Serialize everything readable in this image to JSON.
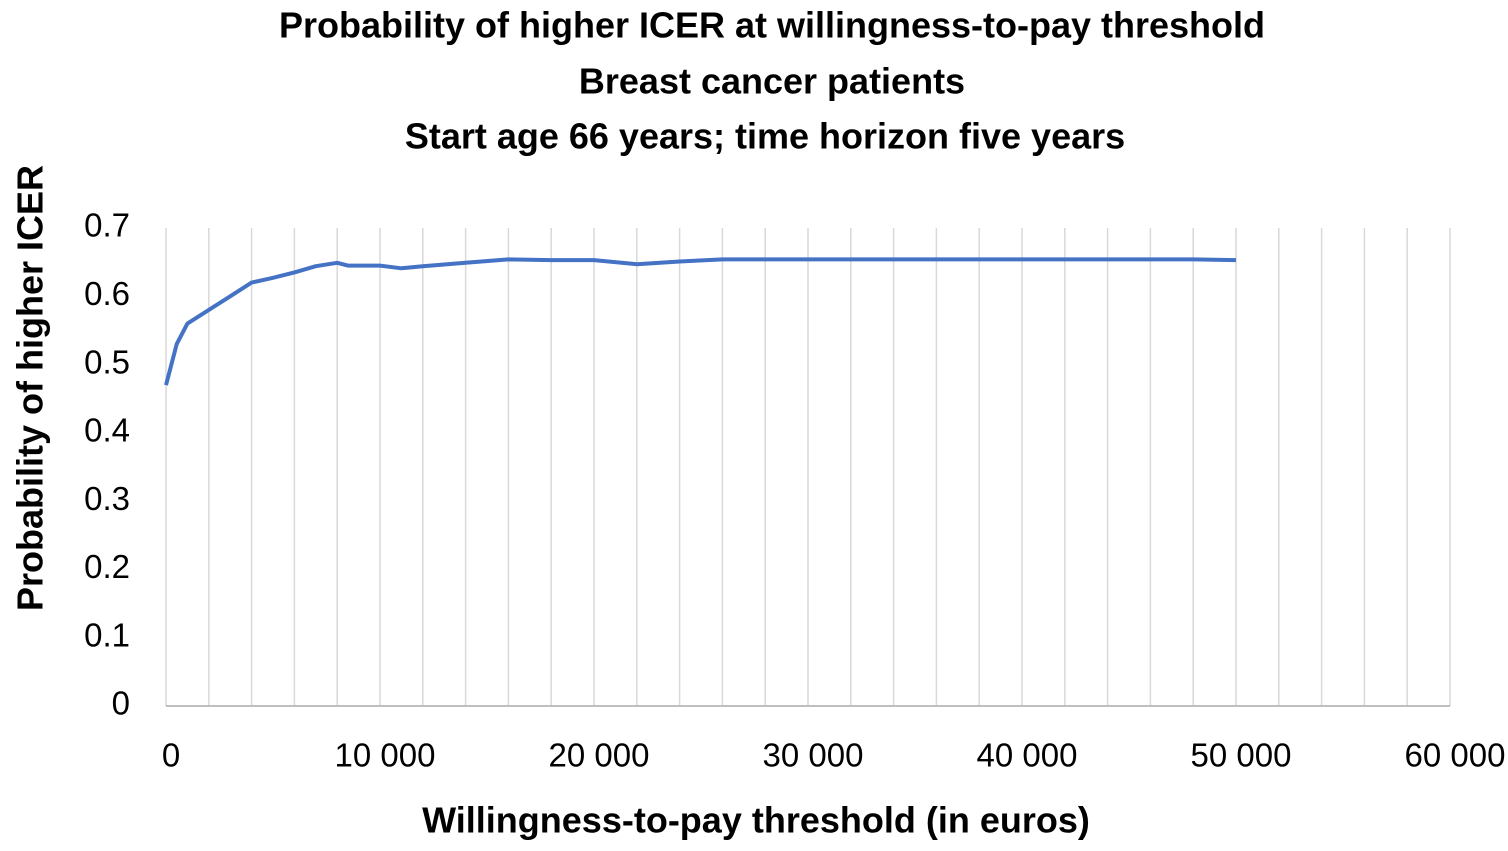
{
  "chart_data": {
    "type": "line",
    "title": "Probability of higher ICER at willingness-to-pay threshold",
    "subtitle": [
      "Breast cancer patients",
      "Start age 66 years; time horizon five years"
    ],
    "x_label": "Willingness-to-pay threshold (in euros)",
    "y_label": "Probability of higher ICER",
    "series": [
      {
        "name": "Probability of higher ICER",
        "color": "#4472c4",
        "x": [
          0,
          500,
          1000,
          2000,
          3000,
          4000,
          5000,
          6000,
          7000,
          8000,
          8500,
          10000,
          11000,
          12000,
          14000,
          16000,
          18000,
          20000,
          22000,
          24000,
          26000,
          28000,
          30000,
          40000,
          48000,
          50000
        ],
        "values": [
          0.47,
          0.53,
          0.56,
          0.58,
          0.6,
          0.62,
          0.627,
          0.635,
          0.644,
          0.649,
          0.645,
          0.645,
          0.641,
          0.644,
          0.649,
          0.654,
          0.653,
          0.653,
          0.647,
          0.651,
          0.654,
          0.654,
          0.654,
          0.654,
          0.654,
          0.653
        ]
      }
    ],
    "xlim": [
      0,
      60000
    ],
    "xticks": [
      0,
      {
        "value": 10000,
        "label": "10 000"
      },
      {
        "value": 20000,
        "label": "20 000"
      },
      {
        "value": 30000,
        "label": "30 000"
      },
      {
        "value": 40000,
        "label": "40 000"
      },
      {
        "value": 50000,
        "label": "50 000"
      },
      {
        "value": 60000,
        "label": "60 000"
      }
    ],
    "x_gridlines": [
      0,
      2000,
      4000,
      6000,
      8000,
      10000,
      12000,
      14000,
      16000,
      18000,
      20000,
      22000,
      24000,
      26000,
      28000,
      30000,
      32000,
      34000,
      36000,
      38000,
      40000,
      42000,
      44000,
      46000,
      48000,
      50000,
      52000,
      54000,
      56000,
      58000,
      60000
    ],
    "ylim": [
      0,
      0.7
    ],
    "yticks": [
      0,
      0.1,
      0.2,
      0.3,
      0.4,
      0.5,
      0.6,
      0.7
    ]
  }
}
